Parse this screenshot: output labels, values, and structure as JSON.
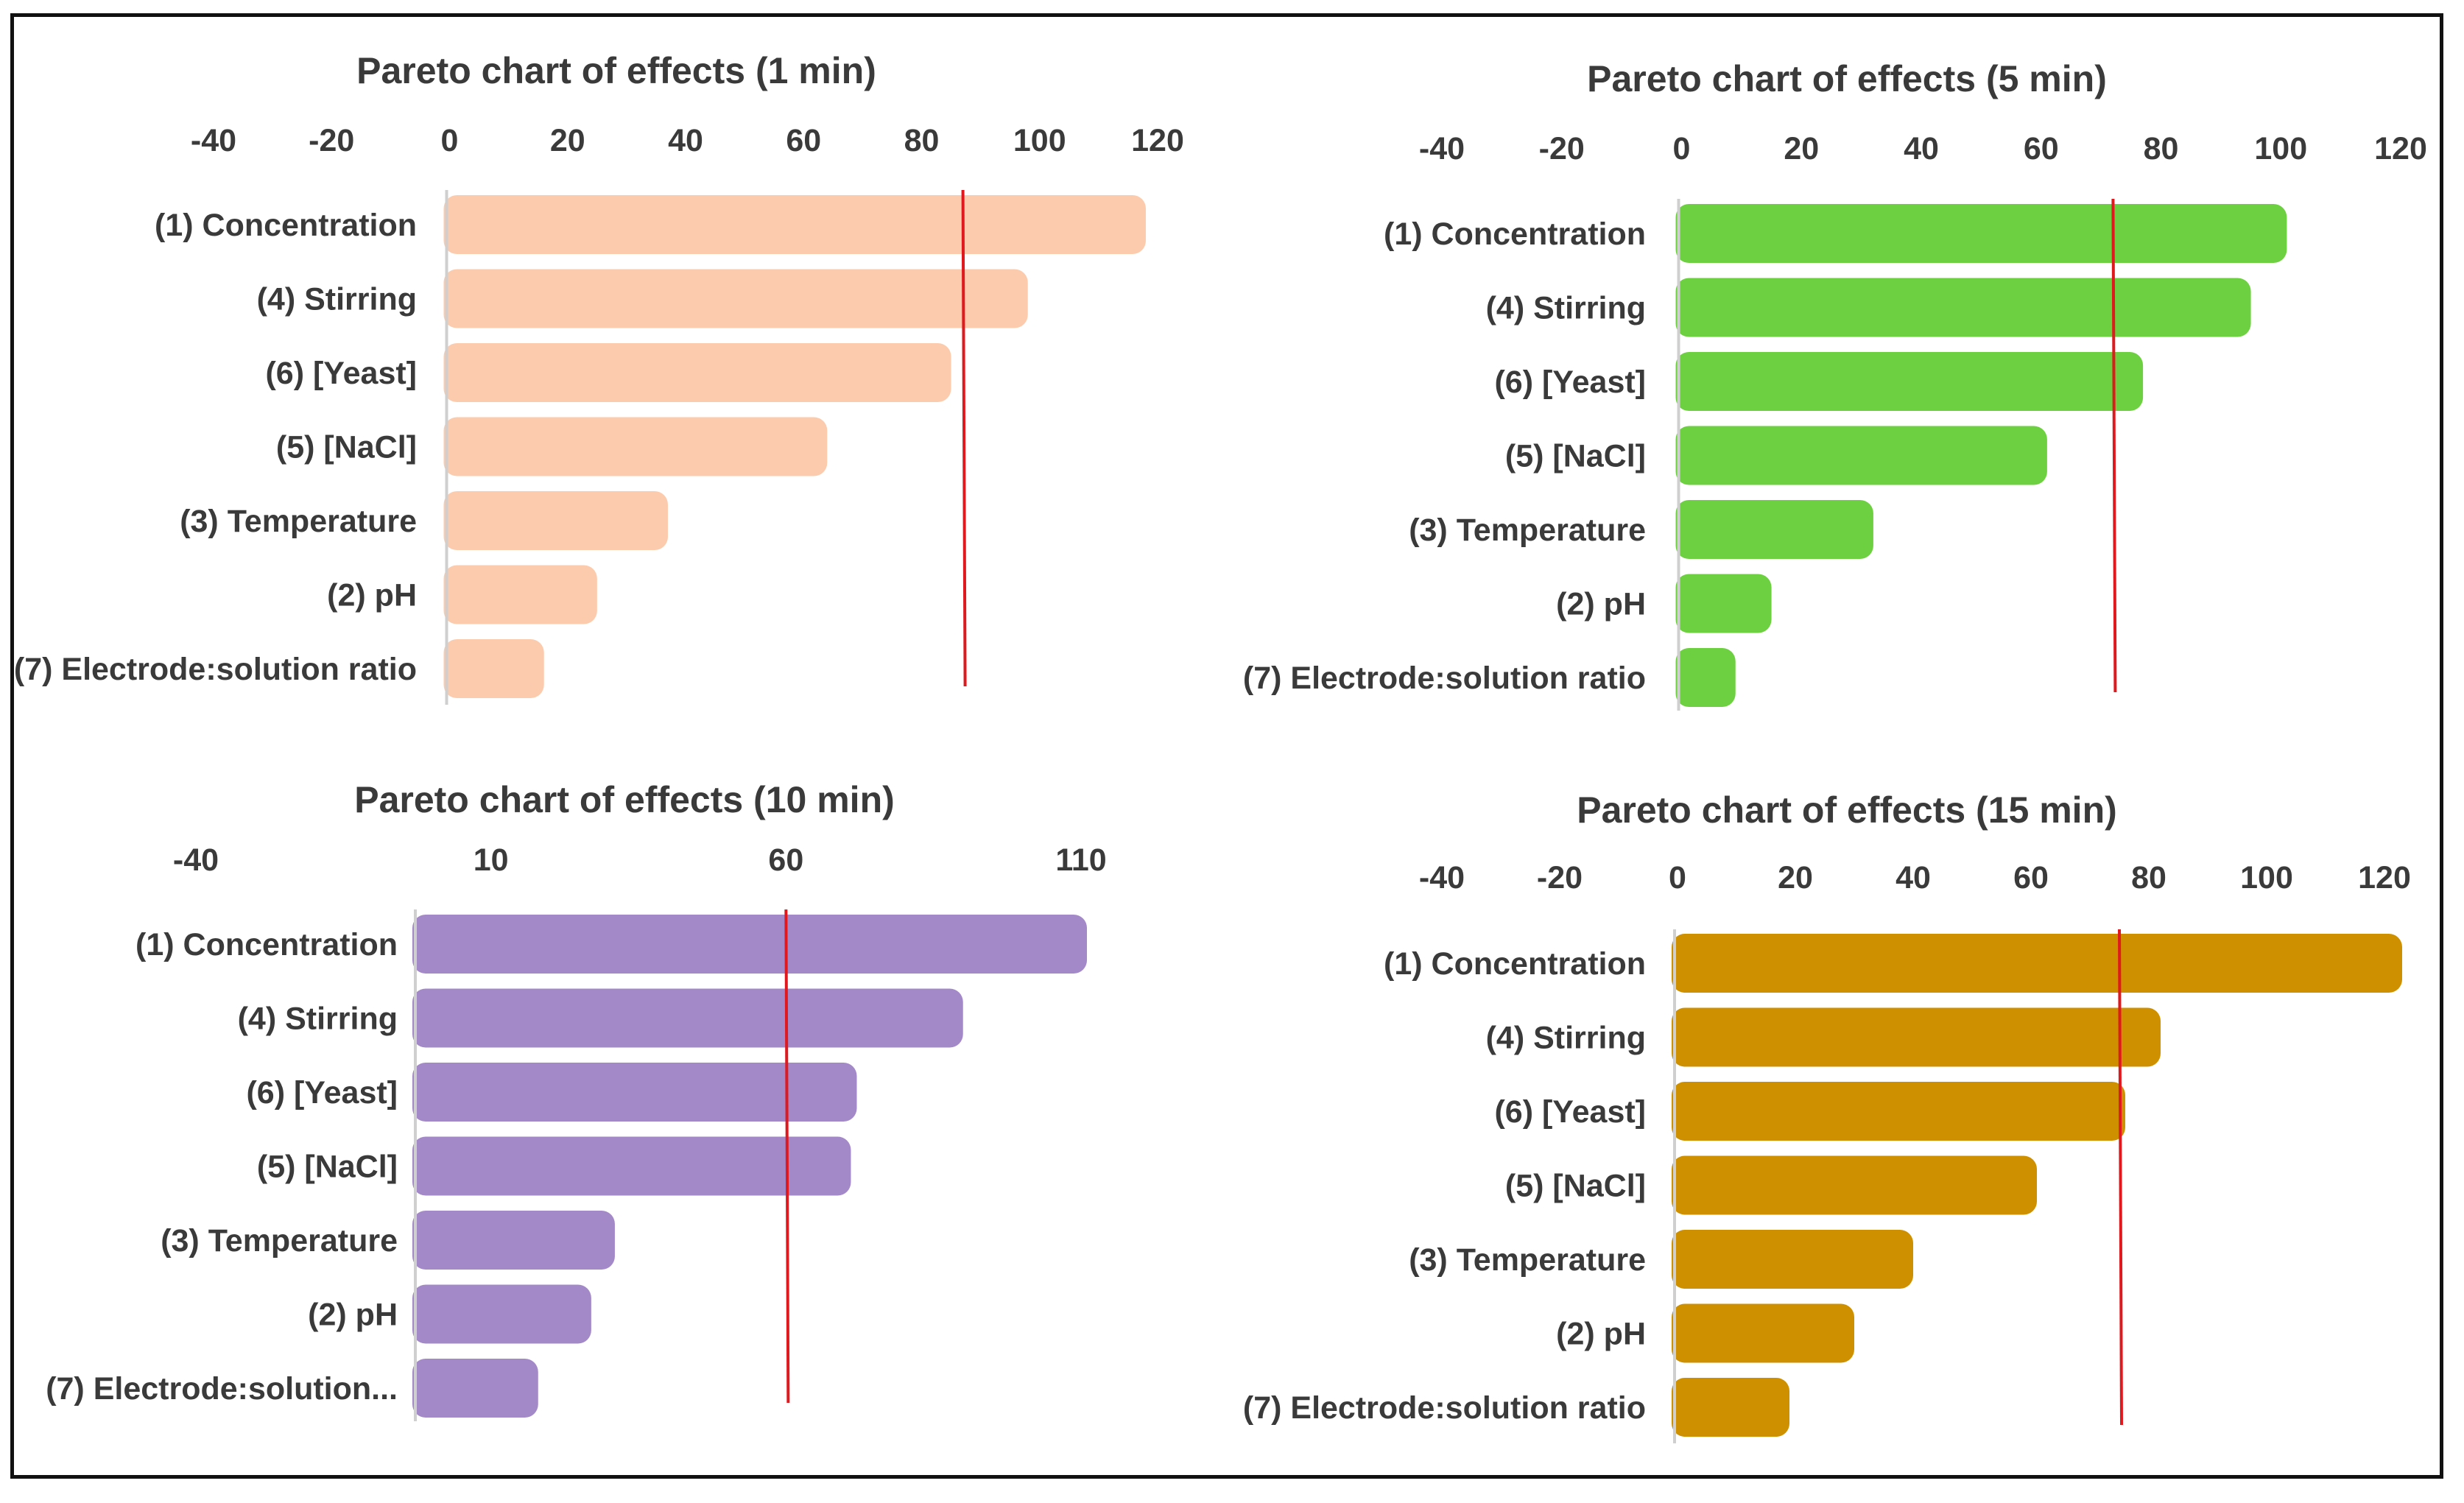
{
  "chart_data": [
    {
      "type": "bar",
      "orientation": "horizontal",
      "title": "Pareto chart of effects (1 min)",
      "xticks": [
        -40,
        -20,
        0,
        20,
        40,
        60,
        80,
        100,
        120
      ],
      "xlim": [
        -40,
        120
      ],
      "categories": [
        "(1) Concentration",
        "(4) Stirring",
        "(6) [Yeast]",
        "(5) [NaCl]",
        "(3) Temperature",
        "(2) pH",
        "(7) Electrode:solution ratio"
      ],
      "values": [
        118,
        98,
        85,
        64,
        37,
        25,
        16
      ],
      "threshold": 87,
      "bar_color": "#fccbad",
      "threshold_color": "#e0191e"
    },
    {
      "type": "bar",
      "orientation": "horizontal",
      "title": "Pareto chart of effects (5 min)",
      "xticks": [
        -40,
        -20,
        0,
        20,
        40,
        60,
        80,
        100,
        120
      ],
      "xlim": [
        -40,
        120
      ],
      "categories": [
        "(1) Concentration",
        "(4) Stirring",
        "(6) [Yeast]",
        "(5) [NaCl]",
        "(3) Temperature",
        "(2) pH",
        "(7) Electrode:solution ratio"
      ],
      "values": [
        101,
        95,
        77,
        61,
        32,
        15,
        9
      ],
      "threshold": 72,
      "bar_color": "#6dd041",
      "threshold_color": "#e0191e"
    },
    {
      "type": "bar",
      "orientation": "horizontal",
      "title": "Pareto chart of effects (10 min)",
      "xticks": [
        -40,
        10,
        60,
        110
      ],
      "xlim": [
        -40,
        110
      ],
      "categories": [
        "(1) Concentration",
        "(4) Stirring",
        "(6) [Yeast]",
        "(5) [NaCl]",
        "(3) Temperature",
        "(2) pH",
        "(7) Electrode:solution..."
      ],
      "values": [
        111,
        90,
        72,
        71,
        31,
        27,
        18
      ],
      "threshold": 60,
      "bar_color": "#a489c8",
      "threshold_color": "#e0191e"
    },
    {
      "type": "bar",
      "orientation": "horizontal",
      "title": "Pareto chart of effects (15 min)",
      "xticks": [
        -40,
        -20,
        0,
        20,
        40,
        60,
        80,
        100,
        120
      ],
      "xlim": [
        -40,
        120
      ],
      "categories": [
        "(1) Concentration",
        "(4) Stirring",
        "(6) [Yeast]",
        "(5) [NaCl]",
        "(3) Temperature",
        "(2) pH",
        "(7) Electrode:solution ratio"
      ],
      "values": [
        123,
        82,
        76,
        61,
        40,
        30,
        19
      ],
      "threshold": 75,
      "bar_color": "#cf9000",
      "threshold_color": "#e0191e"
    }
  ]
}
